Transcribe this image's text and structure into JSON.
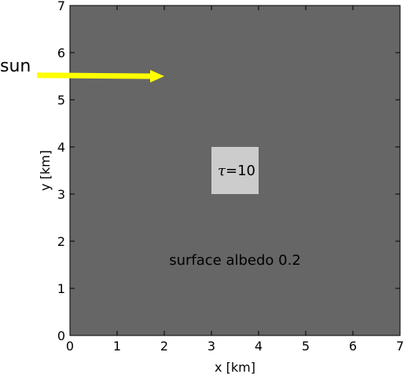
{
  "chart_data": {
    "type": "heatmap",
    "title": "",
    "xlabel": "x [km]",
    "ylabel": "y [km]",
    "xlim": [
      0,
      7
    ],
    "ylim": [
      0,
      7
    ],
    "xticks": [
      "0",
      "1",
      "2",
      "3",
      "4",
      "5",
      "6",
      "7"
    ],
    "yticks": [
      "0",
      "1",
      "2",
      "3",
      "4",
      "5",
      "6",
      "7"
    ],
    "grid": false,
    "background_color": "#666666",
    "cloud": {
      "x": [
        3,
        4
      ],
      "y": [
        3,
        4
      ],
      "color": "#cccccc",
      "label_symbol": "τ",
      "label_value": "=10"
    },
    "surface": {
      "label": "surface albedo 0.2",
      "x": 3.5,
      "y": 1.6
    },
    "sun": {
      "label": "sun",
      "color": "#ffff00",
      "arrow_from": [
        -0.7,
        5.52
      ],
      "arrow_to": [
        2.0,
        5.5
      ]
    }
  }
}
